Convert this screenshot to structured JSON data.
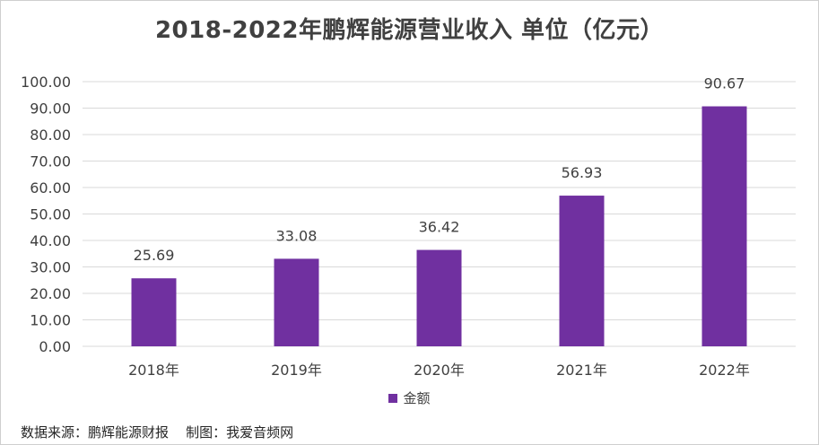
{
  "chart_data": {
    "type": "bar",
    "title": "2018-2022年鹏辉能源营业收入  单位（亿元）",
    "categories": [
      "2018年",
      "2019年",
      "2020年",
      "2021年",
      "2022年"
    ],
    "series": [
      {
        "name": "金额",
        "values": [
          25.69,
          33.08,
          36.42,
          56.93,
          90.67
        ]
      }
    ],
    "data_labels": [
      "25.69",
      "33.08",
      "36.42",
      "56.93",
      "90.67"
    ],
    "y_ticks": [
      "0.00",
      "10.00",
      "20.00",
      "30.00",
      "40.00",
      "50.00",
      "60.00",
      "70.00",
      "80.00",
      "90.00",
      "100.00"
    ],
    "ylim": [
      0,
      100
    ],
    "grid": true,
    "legend_position": "bottom",
    "bar_color": "#7030a0"
  },
  "footer": {
    "source_text": "数据来源：鹏辉能源财报    制图：我爱音频网"
  }
}
